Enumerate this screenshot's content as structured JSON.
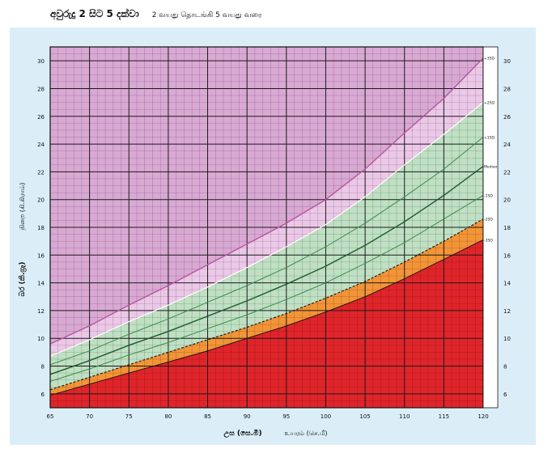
{
  "header": {
    "title_sinhala": "අවුරුදු 2 සිට 5 දක්වා",
    "title_tamil": "2 வயது தொடங்கி 5 வயது வரை"
  },
  "axes": {
    "x_label_sinhala": "උස (සෙ.මී)",
    "x_label_tamil": "உயரம் (செ.மீ)",
    "y_label_sinhala": "බර (කි.ග්‍රෑ)",
    "y_label_tamil": "நிறை (கி.கிராம்)"
  },
  "colors": {
    "panel_bg": "#dbeef8",
    "overweight_pink": "#d9a9d4",
    "overweight_pink_light": "#ecc8e8",
    "normal_green": "#bfe0c3",
    "normal_green_light": "#d9eedb",
    "underweight_light": "#f5cfc3",
    "underweight_orange": "#f39437",
    "severe_red": "#e0252a",
    "grid_major": "#1a1a1a",
    "line_plus3": "#b5559f",
    "line_green": "#3a8a4a",
    "line_median": "#1e5a2e"
  },
  "chart_data": {
    "type": "line",
    "title": "අවුරුදු 2 සිට 5 දක්වා   2 வயது தொடங்கி 5 வயது வரை",
    "xlabel": "උස (සෙ.මී)  உயரம் (செ.மீ)",
    "ylabel": "බර (කි.ග්‍රෑ)  நிறை (கி.கிராம்)",
    "xlim": [
      65,
      120
    ],
    "ylim": [
      5,
      31
    ],
    "x_ticks": [
      "65",
      "70",
      "75",
      "80",
      "85",
      "90",
      "95",
      "100",
      "105",
      "110",
      "115",
      "120"
    ],
    "y_ticks": [
      "6",
      "8",
      "10",
      "12",
      "14",
      "16",
      "18",
      "20",
      "22",
      "24",
      "26",
      "28",
      "30"
    ],
    "grid": true,
    "x": [
      65,
      70,
      75,
      80,
      85,
      90,
      95,
      100,
      105,
      110,
      115,
      120
    ],
    "series": [
      {
        "name": "+3SD",
        "label": "+3SD",
        "values": [
          9.6,
          10.9,
          12.4,
          13.8,
          15.3,
          16.8,
          18.3,
          20.0,
          22.2,
          24.8,
          27.3,
          30.2
        ]
      },
      {
        "name": "+2SD",
        "label": "+2SD",
        "values": [
          8.7,
          9.9,
          11.2,
          12.4,
          13.7,
          15.1,
          16.6,
          18.2,
          20.2,
          22.5,
          24.7,
          27.0
        ]
      },
      {
        "name": "+1SD",
        "label": "+1SD",
        "values": [
          8.1,
          9.1,
          10.3,
          11.4,
          12.6,
          13.8,
          15.1,
          16.6,
          18.3,
          20.2,
          22.2,
          24.5
        ]
      },
      {
        "name": "Median",
        "label": "Median",
        "values": [
          7.4,
          8.4,
          9.5,
          10.5,
          11.6,
          12.7,
          13.9,
          15.2,
          16.7,
          18.4,
          20.3,
          22.4
        ]
      },
      {
        "name": "-1SD",
        "label": "-1SD",
        "values": [
          6.9,
          7.8,
          8.8,
          9.7,
          10.7,
          11.7,
          12.8,
          14.0,
          15.4,
          16.9,
          18.6,
          20.3
        ]
      },
      {
        "name": "-2SD",
        "label": "-2SD",
        "values": [
          6.3,
          7.2,
          8.1,
          9.0,
          9.9,
          10.8,
          11.8,
          12.9,
          14.1,
          15.5,
          17.0,
          18.6
        ]
      },
      {
        "name": "-3SD",
        "label": "-3SD",
        "values": [
          5.9,
          6.7,
          7.5,
          8.3,
          9.1,
          10.0,
          10.9,
          11.9,
          13.0,
          14.3,
          15.7,
          17.1
        ]
      }
    ]
  }
}
